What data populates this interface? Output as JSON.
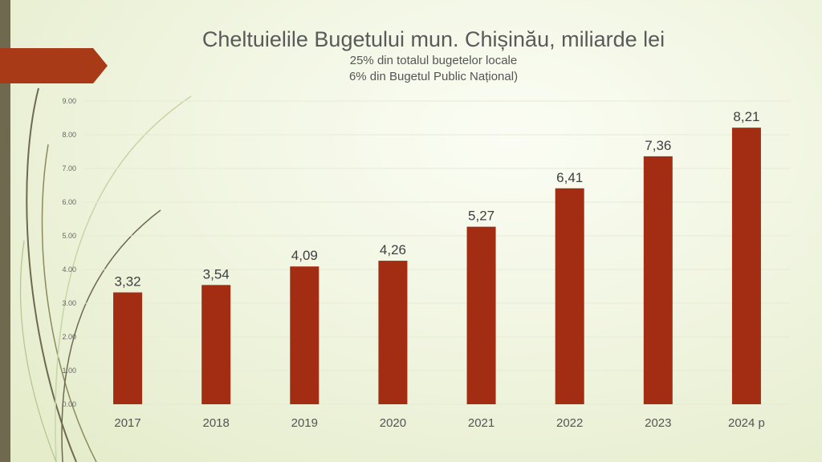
{
  "slide": {
    "title": "Cheltuielile Bugetului mun. Chișinău, miliarde lei",
    "subtitle_line1": "25% din totalul bugetelor locale",
    "subtitle_line2": "6% din Bugetul Public Național)"
  },
  "colors": {
    "bar": "#a32d12",
    "accent_tab": "#a93a17",
    "side_bar": "#6f6a4f",
    "gridline": "#e6ead6",
    "label_text": "#404040",
    "axis_text": "#666666"
  },
  "chart_data": {
    "type": "bar",
    "categories": [
      "2017",
      "2018",
      "2019",
      "2020",
      "2021",
      "2022",
      "2023",
      "2024 p"
    ],
    "values": [
      3.32,
      3.54,
      4.09,
      4.26,
      5.27,
      6.41,
      7.36,
      8.21
    ],
    "data_labels": [
      "3,32",
      "3,54",
      "4,09",
      "4,26",
      "5,27",
      "6,41",
      "7,36",
      "8,21"
    ],
    "y_ticks": [
      "0.00",
      "1.00",
      "2.00",
      "3.00",
      "4.00",
      "5.00",
      "6.00",
      "7.00",
      "8.00",
      "9.00"
    ],
    "ylim": [
      0,
      9
    ],
    "title": "Cheltuielile Bugetului mun. Chișinău, miliarde lei",
    "xlabel": "",
    "ylabel": "",
    "grid": true,
    "legend": "none"
  }
}
